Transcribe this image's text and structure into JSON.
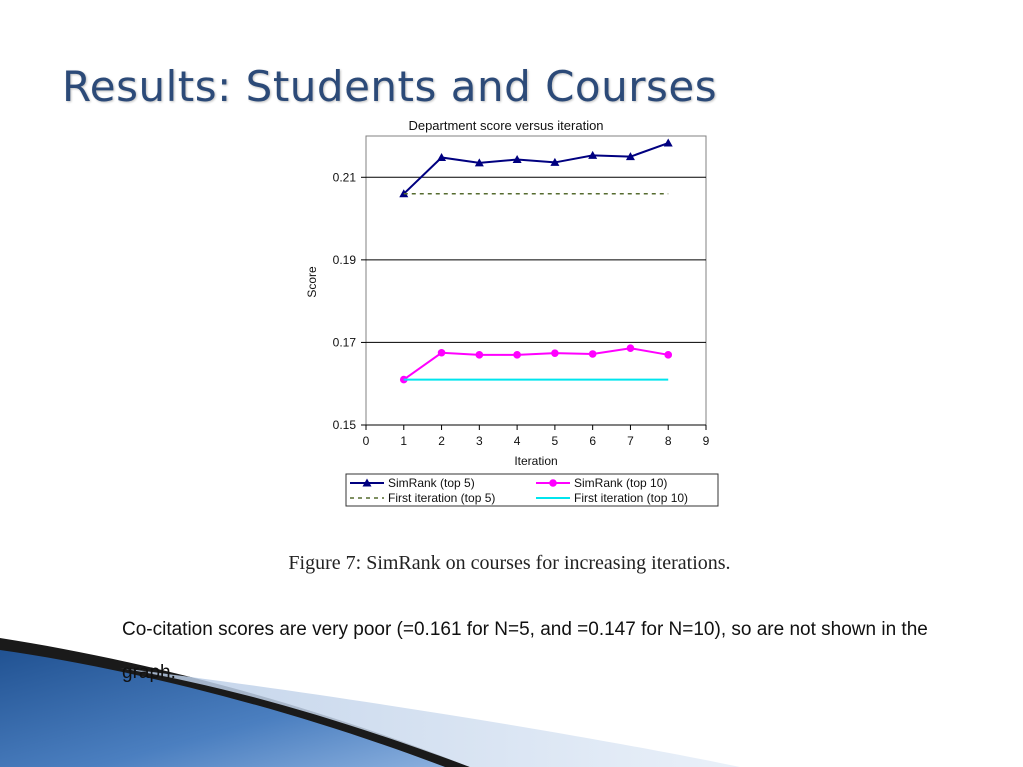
{
  "slide": {
    "title": "Results: Students and Courses",
    "caption": "Figure 7:  SimRank on courses for increasing iterations.",
    "body": "Co-citation scores are very poor (=0.161 for N=5, and =0.147 for N=10), so are not shown in the graph."
  },
  "colors": {
    "title": "#2c4a78",
    "simrank_top5": "#000080",
    "simrank_top10": "#ff00ff",
    "first_top5": "#556b2f",
    "first_top10": "#00e5ee"
  },
  "chart_data": {
    "type": "line",
    "title": "Department score versus iteration",
    "xlabel": "Iteration",
    "ylabel": "Score",
    "xlim": [
      0,
      9
    ],
    "ylim": [
      0.15,
      0.22
    ],
    "xticks": [
      "0",
      "1",
      "2",
      "3",
      "4",
      "5",
      "6",
      "7",
      "8",
      "9"
    ],
    "yticks": [
      {
        "value": 0.15,
        "label": "0.15"
      },
      {
        "value": 0.17,
        "label": "0.17"
      },
      {
        "value": 0.19,
        "label": "0.19"
      },
      {
        "value": 0.21,
        "label": "0.21"
      }
    ],
    "grid": "horizontal",
    "legend_position": "bottom",
    "series": [
      {
        "name": "SimRank (top 5)",
        "style": "solid",
        "marker": "triangle",
        "color": "#000080",
        "x": [
          1,
          2,
          3,
          4,
          5,
          6,
          7,
          8
        ],
        "values": [
          0.206,
          0.2148,
          0.2135,
          0.2143,
          0.2136,
          0.2153,
          0.215,
          0.2183
        ]
      },
      {
        "name": "SimRank (top 10)",
        "style": "solid",
        "marker": "circle",
        "color": "#ff00ff",
        "x": [
          1,
          2,
          3,
          4,
          5,
          6,
          7,
          8
        ],
        "values": [
          0.161,
          0.1675,
          0.167,
          0.167,
          0.1674,
          0.1672,
          0.1686,
          0.167
        ]
      },
      {
        "name": "First iteration (top 5)",
        "style": "dotted",
        "marker": "none",
        "color": "#556b2f",
        "x": [
          1,
          8
        ],
        "values": [
          0.206,
          0.206
        ]
      },
      {
        "name": "First iteration (top 10)",
        "style": "solid",
        "marker": "none",
        "color": "#00e5ee",
        "x": [
          1,
          8
        ],
        "values": [
          0.161,
          0.161
        ]
      }
    ]
  }
}
